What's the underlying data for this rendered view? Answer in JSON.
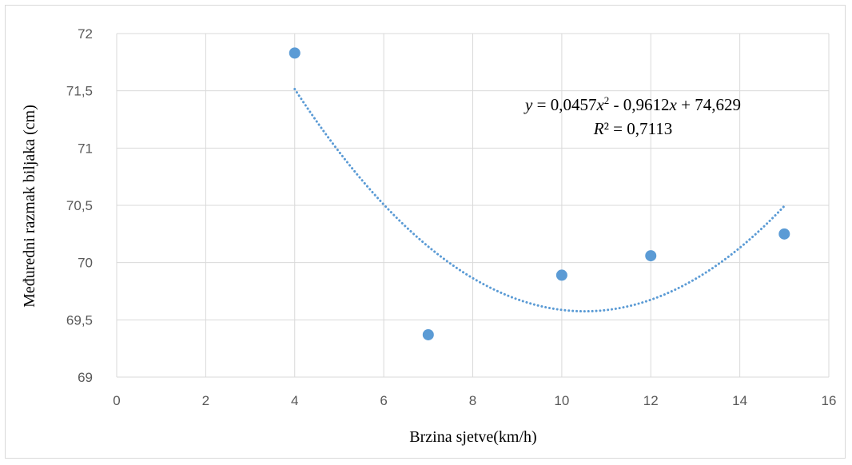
{
  "chart_data": {
    "type": "scatter",
    "xlabel": "Brzina sjetve(km/h)",
    "ylabel": "Međuredni razmak biljaka (cm)",
    "xlim": [
      0,
      16
    ],
    "ylim": [
      69,
      72
    ],
    "xticks": [
      "0",
      "2",
      "4",
      "6",
      "8",
      "10",
      "12",
      "14",
      "16"
    ],
    "yticks": [
      "69",
      "69,5",
      "70",
      "70,5",
      "71",
      "71,5",
      "72"
    ],
    "grid": true,
    "legend": "none",
    "series": [
      {
        "points": [
          {
            "x": 4,
            "y": 71.83
          },
          {
            "x": 7,
            "y": 69.37
          },
          {
            "x": 10,
            "y": 69.89
          },
          {
            "x": 12,
            "y": 70.06
          },
          {
            "x": 15,
            "y": 70.25
          }
        ],
        "color": "#5b9bd5"
      }
    ],
    "trendline": {
      "kind": "polynomial",
      "order": 2,
      "coefficients": {
        "a": 0.0457,
        "b": -0.9612,
        "c": 74.629
      },
      "x_range": [
        4,
        15
      ],
      "style": "dotted",
      "color": "#5b9bd5",
      "equation": {
        "y_var": "y",
        "eq_sign": " = ",
        "coef_a": "0,0457",
        "x_var1": "x",
        "exp": "2",
        "mid": " - 0,9612",
        "x_var2": "x",
        "const": " + 74,629",
        "r_var": "R",
        "r_exp": "²",
        "r_value": " = 0,7113"
      }
    }
  }
}
